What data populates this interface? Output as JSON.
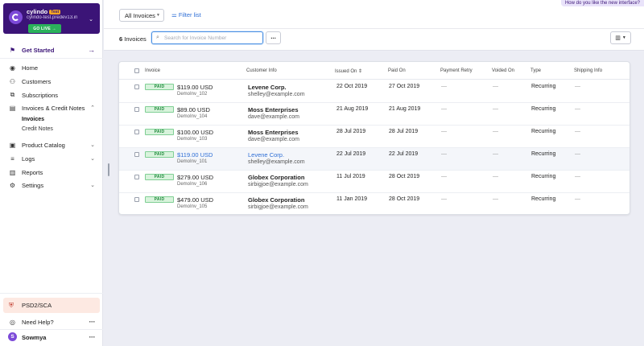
{
  "site": {
    "name": "cylindo",
    "badge": "Test",
    "domain": "cylindo-test.predev13.in",
    "go_live": "GO LIVE"
  },
  "nav": {
    "get_started": "Get Started",
    "home": "Home",
    "customers": "Customers",
    "subscriptions": "Subscriptions",
    "invoices_credit_notes": "Invoices & Credit Notes",
    "invoices": "Invoices",
    "credit_notes": "Credit Notes",
    "product_catalog": "Product Catalog",
    "logs": "Logs",
    "reports": "Reports",
    "settings": "Settings"
  },
  "footer": {
    "psd2": "PSD2/SCA",
    "help": "Need Help?",
    "user_name": "Sowmya",
    "user_initial": "S"
  },
  "topbar": {
    "filter_select": "All Invoices",
    "filter_link": "Filter list",
    "feedback": "How do you like the new interface?"
  },
  "subbar": {
    "count_number": "6",
    "count_label": "Invoices",
    "search_placeholder": "Search for Invoice Number"
  },
  "table": {
    "columns": {
      "invoice": "Invoice",
      "customer": "Customer Info",
      "issued_on": "Issued On",
      "paid_on": "Paid On",
      "payment_retry": "Payment Retry",
      "voided_on": "Voided On",
      "type": "Type",
      "shipping": "Shipping Info"
    },
    "rows": [
      {
        "status": "PAID",
        "amount": "$119.00 USD",
        "invoice_no": "DemoInv_102",
        "customer": "Levene Corp.",
        "email": "shelley@example.com",
        "issued": "22 Oct 2019",
        "paid": "27 Oct 2019",
        "retry": "—",
        "voided": "—",
        "type": "Recurring",
        "shipping": "—"
      },
      {
        "status": "PAID",
        "amount": "$89.00 USD",
        "invoice_no": "DemoInv_104",
        "customer": "Moss Enterprises",
        "email": "dave@example.com",
        "issued": "21 Aug 2019",
        "paid": "21 Aug 2019",
        "retry": "—",
        "voided": "—",
        "type": "Recurring",
        "shipping": "—"
      },
      {
        "status": "PAID",
        "amount": "$100.00 USD",
        "invoice_no": "DemoInv_103",
        "customer": "Moss Enterprises",
        "email": "dave@example.com",
        "issued": "28 Jul 2019",
        "paid": "28 Jul 2019",
        "retry": "—",
        "voided": "—",
        "type": "Recurring",
        "shipping": "—"
      },
      {
        "status": "PAID",
        "amount": "$119.00 USD",
        "invoice_no": "DemoInv_101",
        "customer": "Levene Corp.",
        "email": "shelley@example.com",
        "issued": "22 Jul 2019",
        "paid": "22 Jul 2019",
        "retry": "—",
        "voided": "—",
        "type": "Recurring",
        "shipping": "—"
      },
      {
        "status": "PAID",
        "amount": "$279.00 USD",
        "invoice_no": "DemoInv_106",
        "customer": "Globex Corporation",
        "email": "sirbigjoe@example.com",
        "issued": "11 Jul 2019",
        "paid": "28 Oct 2019",
        "retry": "—",
        "voided": "—",
        "type": "Recurring",
        "shipping": "—"
      },
      {
        "status": "PAID",
        "amount": "$479.00 USD",
        "invoice_no": "DemoInv_105",
        "customer": "Globex Corporation",
        "email": "sirbigjoe@example.com",
        "issued": "11 Jan 2019",
        "paid": "28 Oct 2019",
        "retry": "—",
        "voided": "—",
        "type": "Recurring",
        "shipping": "—"
      }
    ]
  },
  "colors": {
    "brand": "#3b1477",
    "link": "#2f6fd6",
    "paid_bg": "#d8f3dc",
    "go_live": "#2bb15b"
  }
}
